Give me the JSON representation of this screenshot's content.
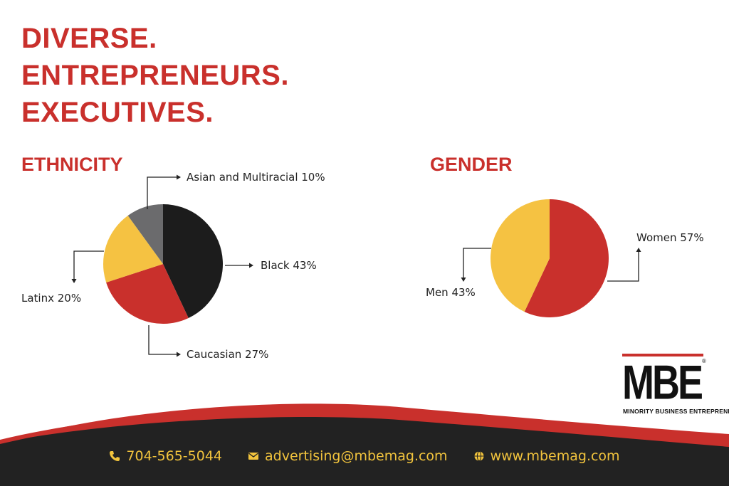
{
  "headline": [
    "DIVERSE.",
    "ENTREPRENEURS.",
    "EXECUTIVES."
  ],
  "colors": {
    "accent": "#c9302c",
    "black": "#1c1c1c",
    "yellow": "#f5c242",
    "gray": "#6b6b6d",
    "footer": "#222222"
  },
  "chart_data": [
    {
      "type": "pie",
      "title": "ETHNICITY",
      "slices": [
        {
          "label": "Black 43%",
          "name": "Black",
          "value": 43,
          "color": "#1c1c1c"
        },
        {
          "label": "Caucasian 27%",
          "name": "Caucasian",
          "value": 27,
          "color": "#c9302c"
        },
        {
          "label": "Latinx 20%",
          "name": "Latinx",
          "value": 20,
          "color": "#f5c242"
        },
        {
          "label": "Asian and Multiracial 10%",
          "name": "Asian and Multiracial",
          "value": 10,
          "color": "#6b6b6d"
        }
      ]
    },
    {
      "type": "pie",
      "title": "GENDER",
      "slices": [
        {
          "label": "Women 57%",
          "name": "Women",
          "value": 57,
          "color": "#c9302c"
        },
        {
          "label": "Men 43%",
          "name": "Men",
          "value": 43,
          "color": "#f5c242"
        }
      ]
    }
  ],
  "logo": {
    "text": "MBE",
    "registered": "®",
    "subtitle": "MINORITY BUSINESS ENTREPRENEUR"
  },
  "footer": {
    "phone": "704-565-5044",
    "email": "advertising@mbemag.com",
    "website": "www.mbemag.com",
    "phone_icon": "phone-icon",
    "email_icon": "envelope-icon",
    "web_icon": "globe-icon"
  }
}
